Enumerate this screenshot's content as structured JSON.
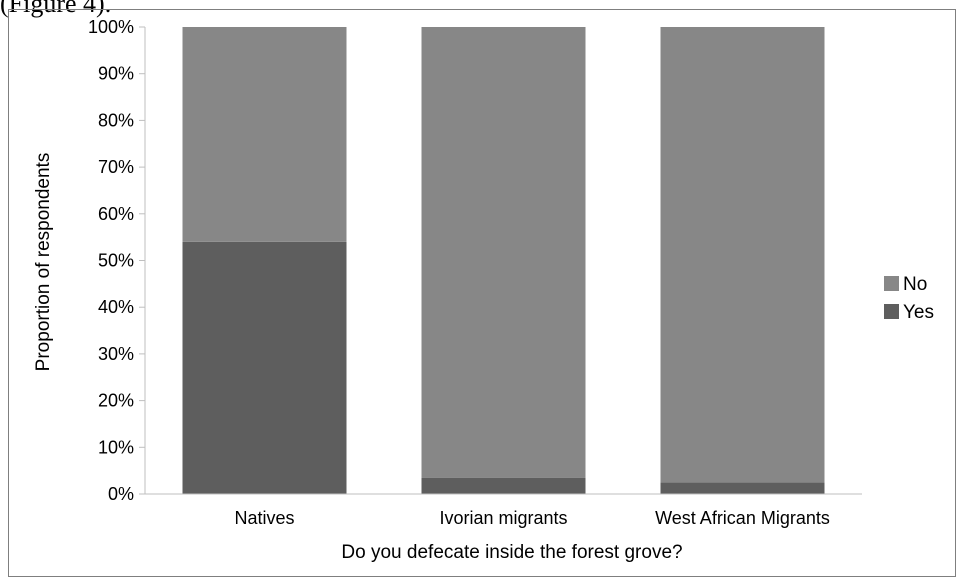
{
  "caption": "(Figure 4).",
  "chart_data": {
    "type": "bar",
    "stacked": true,
    "percent": true,
    "categories": [
      "Natives",
      "Ivorian migrants",
      "West African Migrants"
    ],
    "series": [
      {
        "name": "Yes",
        "values": [
          54,
          3.5,
          2.5
        ],
        "color": "#5e5e5e"
      },
      {
        "name": "No",
        "values": [
          46,
          96.5,
          97.5
        ],
        "color": "#878787"
      }
    ],
    "xlabel": "Do you defecate inside the forest grove?",
    "ylabel": "Proportion of respondents",
    "ylim": [
      0,
      100
    ],
    "yticks": [
      "0%",
      "10%",
      "20%",
      "30%",
      "40%",
      "50%",
      "60%",
      "70%",
      "80%",
      "90%",
      "100%"
    ],
    "grid": false,
    "legend": {
      "position": "right",
      "entries": [
        {
          "name": "No",
          "color": "#878787"
        },
        {
          "name": "Yes",
          "color": "#5e5e5e"
        }
      ]
    }
  }
}
